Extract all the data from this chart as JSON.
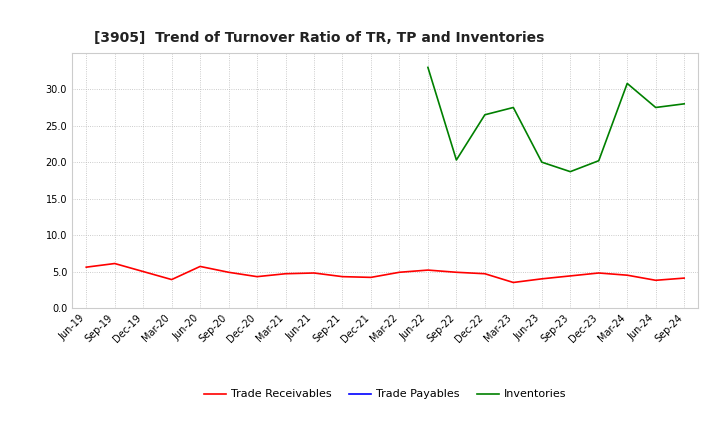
{
  "title": "[3905]  Trend of Turnover Ratio of TR, TP and Inventories",
  "x_labels": [
    "Jun-19",
    "Sep-19",
    "Dec-19",
    "Mar-20",
    "Jun-20",
    "Sep-20",
    "Dec-20",
    "Mar-21",
    "Jun-21",
    "Sep-21",
    "Dec-21",
    "Mar-22",
    "Jun-22",
    "Sep-22",
    "Dec-22",
    "Mar-23",
    "Jun-23",
    "Sep-23",
    "Dec-23",
    "Mar-24",
    "Jun-24",
    "Sep-24"
  ],
  "trade_receivables": [
    5.6,
    6.1,
    5.0,
    3.9,
    5.7,
    4.9,
    4.3,
    4.7,
    4.8,
    4.3,
    4.2,
    4.9,
    5.2,
    4.9,
    4.7,
    3.5,
    4.0,
    4.4,
    4.8,
    4.5,
    3.8,
    4.1
  ],
  "trade_payables": [
    null,
    null,
    null,
    null,
    null,
    null,
    null,
    null,
    null,
    null,
    null,
    null,
    null,
    null,
    null,
    null,
    null,
    null,
    null,
    null,
    null,
    null
  ],
  "inventories": [
    null,
    null,
    null,
    null,
    null,
    null,
    null,
    null,
    null,
    null,
    null,
    null,
    33.0,
    20.3,
    26.5,
    27.5,
    20.0,
    18.7,
    20.2,
    30.8,
    27.5,
    28.0
  ],
  "ylim": [
    0,
    35
  ],
  "yticks": [
    0.0,
    5.0,
    10.0,
    15.0,
    20.0,
    25.0,
    30.0
  ],
  "tr_color": "#ff0000",
  "tp_color": "#0000ff",
  "inv_color": "#008000",
  "background_color": "#ffffff",
  "grid_color": "#bbbbbb",
  "legend_labels": [
    "Trade Receivables",
    "Trade Payables",
    "Inventories"
  ],
  "title_fontsize": 10,
  "tick_fontsize": 7,
  "legend_fontsize": 8
}
